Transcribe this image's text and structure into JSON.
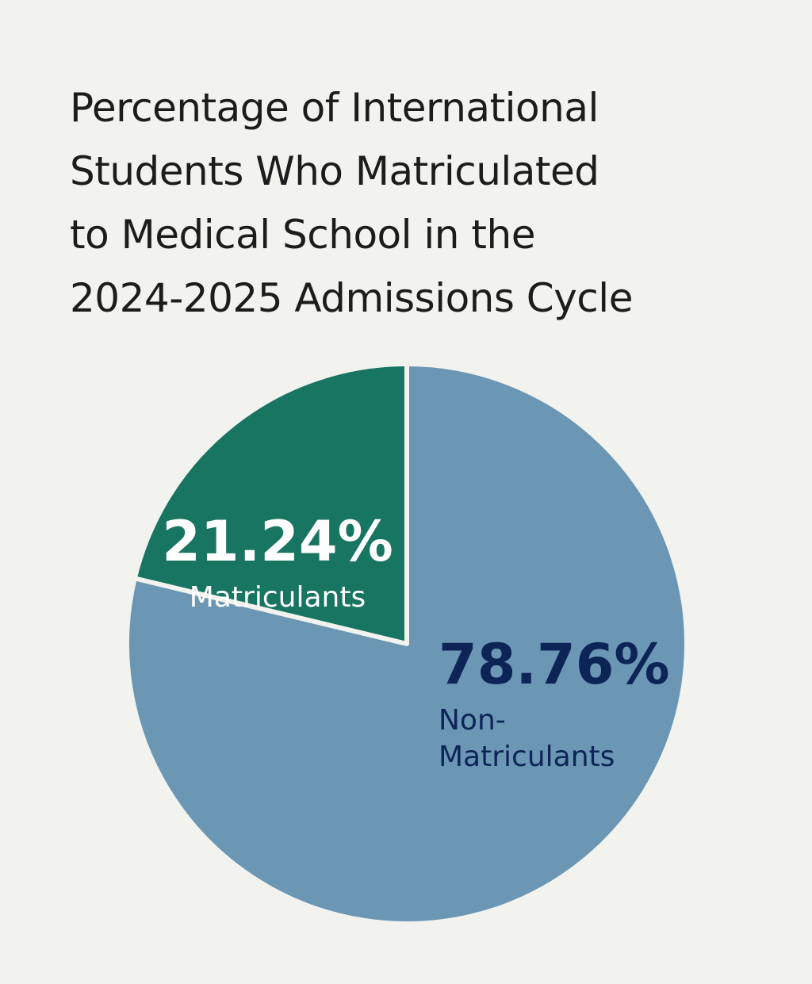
{
  "chart_data": {
    "type": "pie",
    "title_lines": [
      "Percentage of International",
      "Students Who Matriculated",
      "to Medical School in the",
      "2024-2025 Admissions Cycle"
    ],
    "slices": [
      {
        "value_label": "21.24%",
        "name_lines": [
          "Matriculants"
        ],
        "value": 21.24,
        "color": "#187561",
        "text_color": "#ffffff"
      },
      {
        "value_label": "78.76%",
        "name_lines": [
          "Non-",
          "Matriculants"
        ],
        "value": 78.76,
        "color": "#6b97b5",
        "text_color": "#0d2456"
      }
    ],
    "start_angle_deg": 0,
    "direction": "counterclockwise",
    "legend": "none"
  }
}
